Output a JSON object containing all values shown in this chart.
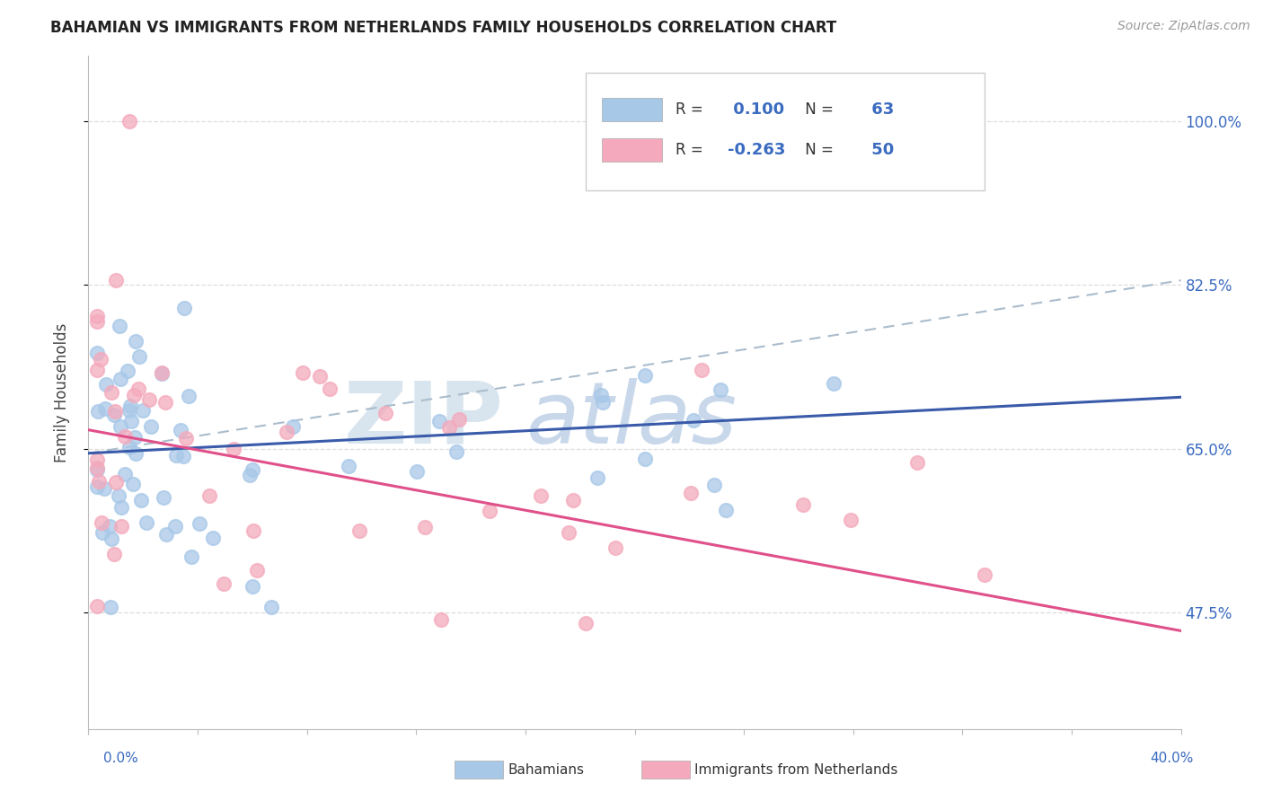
{
  "title": "BAHAMIAN VS IMMIGRANTS FROM NETHERLANDS FAMILY HOUSEHOLDS CORRELATION CHART",
  "source": "Source: ZipAtlas.com",
  "ylabel": "Family Households",
  "xlim": [
    0.0,
    40.0
  ],
  "ylim": [
    35.0,
    107.0
  ],
  "y_ticks": [
    47.5,
    65.0,
    82.5,
    100.0
  ],
  "y_tick_labels": [
    "47.5%",
    "65.0%",
    "82.5%",
    "100.0%"
  ],
  "blue_R": 0.1,
  "blue_N": 63,
  "pink_R": -0.263,
  "pink_N": 50,
  "blue_scatter_color": "#A8C8E8",
  "pink_scatter_color": "#F4AABC",
  "blue_line_color": "#3A5BAA",
  "pink_line_color": "#E0508A",
  "dashed_line_color": "#AABCCC",
  "background_color": "#FFFFFF",
  "grid_color": "#DDDDDD",
  "right_tick_color": "#3A6BC0",
  "title_color": "#222222",
  "source_color": "#999999",
  "blue_line_x": [
    0.0,
    40.0
  ],
  "blue_line_y": [
    64.5,
    70.5
  ],
  "pink_line_x": [
    0.0,
    40.0
  ],
  "pink_line_y": [
    67.0,
    45.5
  ],
  "dashed_line_x": [
    0.0,
    40.0
  ],
  "dashed_line_y": [
    64.5,
    83.0
  ],
  "watermark_zip_color": "#D8E4EE",
  "watermark_atlas_color": "#C8D8EA",
  "bottom_legend_blue_label": "Bahamians",
  "bottom_legend_pink_label": "Immigrants from Netherlands"
}
